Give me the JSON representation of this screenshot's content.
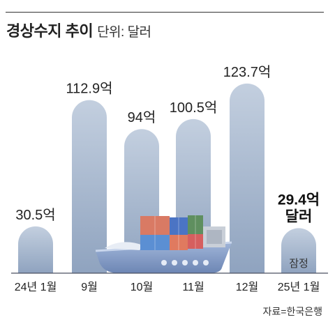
{
  "title": "경상수지 추이",
  "unit_label": "단위: 달러",
  "source": "자료=한국은행",
  "colors": {
    "bar_top": "#c3cfdf",
    "bar_bottom": "#8fa3bf",
    "highlight_text": "#111111",
    "ship_hull": "#7f97c3"
  },
  "chart_data": {
    "type": "bar",
    "title": "경상수지 추이",
    "unit": "단위: 달러",
    "categories": [
      "24년 1월",
      "9월",
      "10월",
      "11월",
      "12월",
      "25년 1월"
    ],
    "values": [
      30.5,
      112.9,
      94,
      100.5,
      123.7,
      29.4
    ],
    "value_labels": [
      "30.5억",
      "112.9억",
      "94억",
      "100.5억",
      "123.7억",
      "29.4억\n달러"
    ],
    "annotations": [
      {
        "category": "25년 1월",
        "text": "잠정"
      }
    ],
    "ylim": [
      0,
      140
    ],
    "grid": false,
    "legend": "none"
  }
}
